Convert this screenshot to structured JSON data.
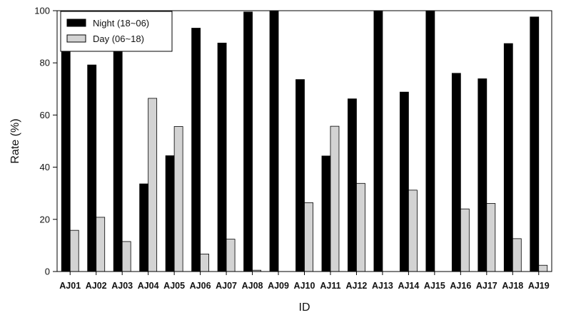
{
  "chart_data": {
    "type": "bar",
    "xlabel": "ID",
    "ylabel": "Rate (%)",
    "ylim": [
      0,
      100
    ],
    "yticks": [
      0,
      20,
      40,
      60,
      80,
      100
    ],
    "categories": [
      "AJ01",
      "AJ02",
      "AJ03",
      "AJ04",
      "AJ05",
      "AJ06",
      "AJ07",
      "AJ08",
      "AJ09",
      "AJ10",
      "AJ11",
      "AJ12",
      "AJ13",
      "AJ14",
      "AJ15",
      "AJ16",
      "AJ17",
      "AJ18",
      "AJ19"
    ],
    "series": [
      {
        "name": "Night (18~06)",
        "color": "#000000",
        "values": [
          84.2,
          79.2,
          88.5,
          33.6,
          44.4,
          93.3,
          87.6,
          99.5,
          100,
          73.6,
          44.3,
          66.2,
          100,
          68.8,
          100,
          76.0,
          73.9,
          87.4,
          97.6
        ]
      },
      {
        "name": "Day (06~18)",
        "color": "#d3d3d3",
        "values": [
          15.8,
          20.8,
          11.5,
          66.4,
          55.6,
          6.7,
          12.4,
          0.5,
          0,
          26.4,
          55.7,
          33.8,
          0,
          31.2,
          0,
          24.0,
          26.1,
          12.6,
          2.4
        ]
      }
    ],
    "legend": {
      "position": "top-left"
    },
    "grid": false
  }
}
